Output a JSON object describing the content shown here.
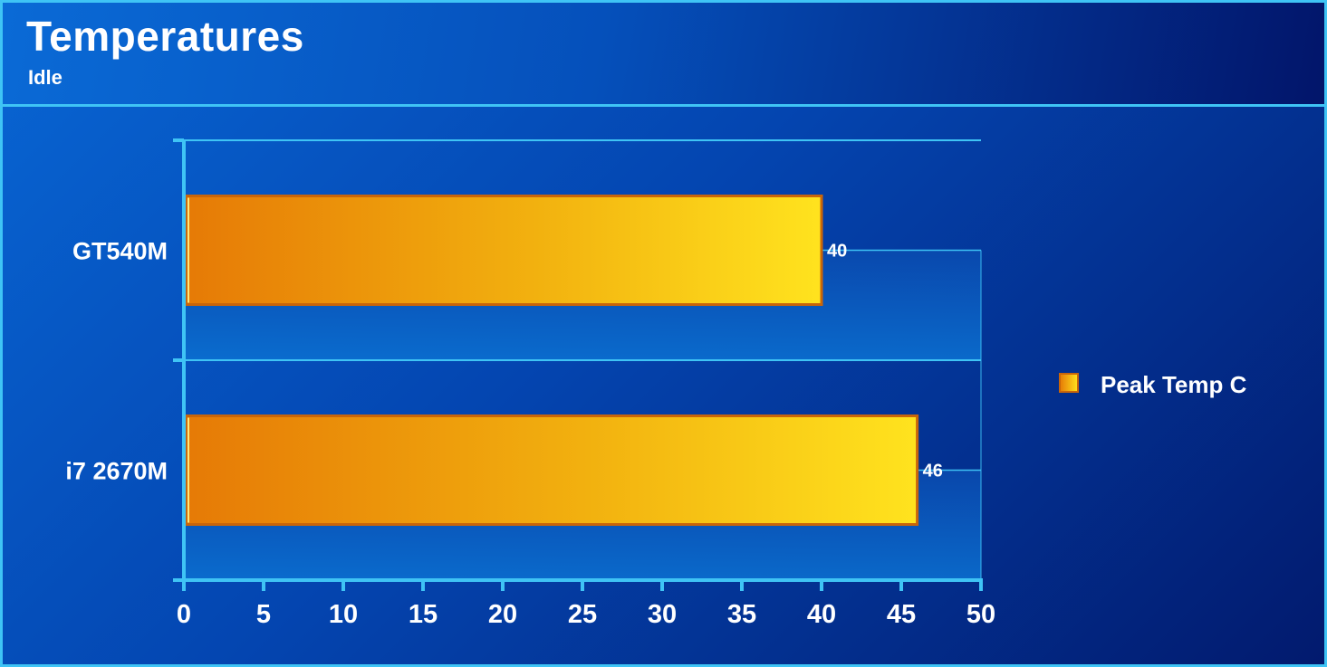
{
  "header": {
    "title": "Temperatures",
    "subtitle": "Idle"
  },
  "colors": {
    "border": "#3fc4f5",
    "bar_start": "#e67a06",
    "bar_end": "#ffe31e",
    "bar_outline": "#c9650a",
    "label_text": "#ffffff"
  },
  "chart_data": {
    "type": "bar",
    "orientation": "horizontal",
    "title": "Temperatures",
    "subtitle": "Idle",
    "categories": [
      "GT540M",
      "i7 2670M"
    ],
    "series": [
      {
        "name": "Peak Temp C",
        "values": [
          40,
          46
        ]
      }
    ],
    "xlim": [
      0,
      50
    ],
    "x_ticks": [
      "0",
      "5",
      "10",
      "15",
      "20",
      "25",
      "30",
      "35",
      "40",
      "45",
      "50"
    ],
    "data_labels": [
      "40",
      "46"
    ],
    "xlabel": "",
    "ylabel": "",
    "grid": true,
    "legend_position": "right"
  }
}
